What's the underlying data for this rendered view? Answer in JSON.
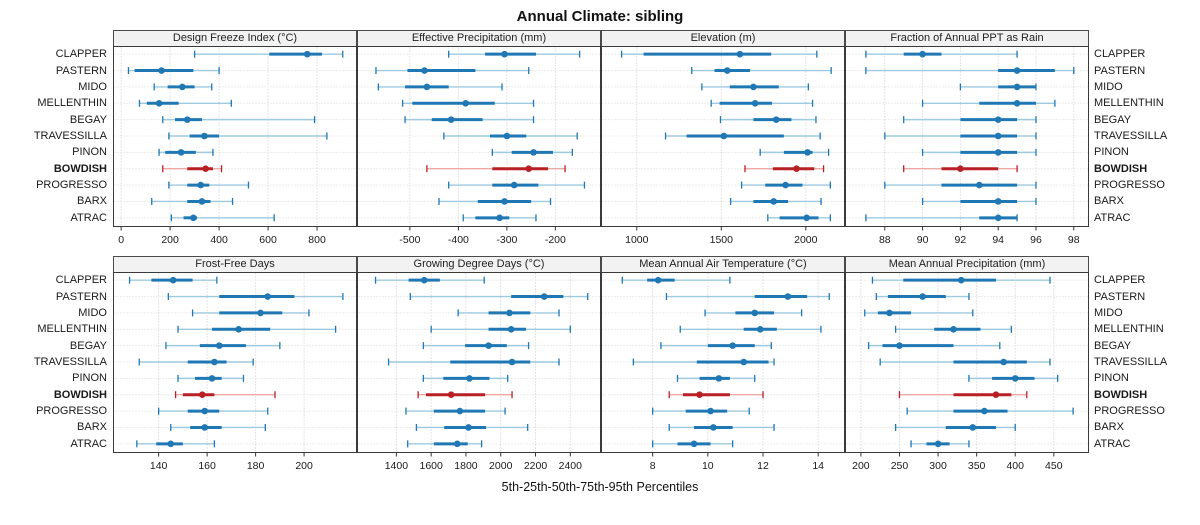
{
  "title": "Annual Climate: sibling",
  "footer": "5th-25th-50th-75th-95th Percentiles",
  "percentile_labels": [
    "5th",
    "25th",
    "50th",
    "75th",
    "95th"
  ],
  "stations": [
    "CLAPPER",
    "PASTERN",
    "MIDO",
    "MELLENTHIN",
    "BEGAY",
    "TRAVESSILLA",
    "PINON",
    "BOWDISH",
    "PROGRESSO",
    "BARX",
    "ATRAC"
  ],
  "highlight_station": "BOWDISH",
  "colors": {
    "blue": "#1f77b4",
    "blue_light": "#9ecae1",
    "red": "#b92025",
    "red_light": "#f0a8a4",
    "grid": "#c9c9c9",
    "panel_border": "#3a3a3a",
    "header_bg": "#f2f2f2",
    "tick_text": "#1a1a1a"
  },
  "chart_data": [
    {
      "type": "dot-interval",
      "title": "Design Freeze Index (°C)",
      "position": "top-1",
      "xlim": [
        -25,
        955
      ],
      "ticks": [
        0,
        200,
        400,
        600,
        800
      ],
      "series": [
        {
          "name": "CLAPPER",
          "values": [
            300,
            605,
            760,
            820,
            905
          ]
        },
        {
          "name": "PASTERN",
          "values": [
            30,
            55,
            165,
            295,
            400
          ]
        },
        {
          "name": "MIDO",
          "values": [
            135,
            190,
            250,
            300,
            370
          ]
        },
        {
          "name": "MELLENTHIN",
          "values": [
            75,
            105,
            155,
            235,
            450
          ]
        },
        {
          "name": "BEGAY",
          "values": [
            170,
            220,
            270,
            330,
            790
          ]
        },
        {
          "name": "TRAVESSILLA",
          "values": [
            195,
            280,
            340,
            400,
            840
          ]
        },
        {
          "name": "PINON",
          "values": [
            155,
            180,
            245,
            305,
            375
          ]
        },
        {
          "name": "BOWDISH",
          "values": [
            170,
            270,
            345,
            375,
            410
          ]
        },
        {
          "name": "PROGRESSO",
          "values": [
            195,
            270,
            325,
            360,
            520
          ]
        },
        {
          "name": "BARX",
          "values": [
            125,
            270,
            330,
            365,
            455
          ]
        },
        {
          "name": "ATRAC",
          "values": [
            205,
            255,
            295,
            310,
            625
          ]
        }
      ]
    },
    {
      "type": "dot-interval",
      "title": "Effective Precipitation (mm)",
      "position": "top-2",
      "xlim": [
        -605,
        -110
      ],
      "ticks": [
        -500,
        -400,
        -300,
        -200
      ],
      "series": [
        {
          "name": "CLAPPER",
          "values": [
            -420,
            -345,
            -305,
            -240,
            -150
          ]
        },
        {
          "name": "PASTERN",
          "values": [
            -570,
            -505,
            -470,
            -365,
            -255
          ]
        },
        {
          "name": "MIDO",
          "values": [
            -565,
            -510,
            -465,
            -420,
            -310
          ]
        },
        {
          "name": "MELLENTHIN",
          "values": [
            -515,
            -495,
            -385,
            -325,
            -245
          ]
        },
        {
          "name": "BEGAY",
          "values": [
            -510,
            -455,
            -415,
            -350,
            -245
          ]
        },
        {
          "name": "TRAVESSILLA",
          "values": [
            -430,
            -335,
            -300,
            -260,
            -155
          ]
        },
        {
          "name": "PINON",
          "values": [
            -330,
            -290,
            -245,
            -205,
            -165
          ]
        },
        {
          "name": "BOWDISH",
          "values": [
            -465,
            -330,
            -255,
            -215,
            -180
          ]
        },
        {
          "name": "PROGRESSO",
          "values": [
            -420,
            -330,
            -285,
            -235,
            -140
          ]
        },
        {
          "name": "BARX",
          "values": [
            -440,
            -360,
            -305,
            -250,
            -210
          ]
        },
        {
          "name": "ATRAC",
          "values": [
            -390,
            -365,
            -315,
            -295,
            -240
          ]
        }
      ]
    },
    {
      "type": "dot-interval",
      "title": "Elevation (m)",
      "position": "top-3",
      "xlim": [
        800,
        2220
      ],
      "ticks": [
        1000,
        1500,
        2000
      ],
      "series": [
        {
          "name": "CLAPPER",
          "values": [
            910,
            1040,
            1610,
            1795,
            2065
          ]
        },
        {
          "name": "PASTERN",
          "values": [
            1325,
            1460,
            1535,
            1670,
            2150
          ]
        },
        {
          "name": "MIDO",
          "values": [
            1385,
            1550,
            1690,
            1840,
            2015
          ]
        },
        {
          "name": "MELLENTHIN",
          "values": [
            1440,
            1490,
            1700,
            1800,
            2040
          ]
        },
        {
          "name": "BEGAY",
          "values": [
            1495,
            1690,
            1825,
            1915,
            2060
          ]
        },
        {
          "name": "TRAVESSILLA",
          "values": [
            1170,
            1295,
            1515,
            1870,
            2085
          ]
        },
        {
          "name": "PINON",
          "values": [
            1730,
            1870,
            2010,
            2040,
            2135
          ]
        },
        {
          "name": "BOWDISH",
          "values": [
            1640,
            1805,
            1945,
            2050,
            2105
          ]
        },
        {
          "name": "PROGRESSO",
          "values": [
            1620,
            1760,
            1880,
            1980,
            2145
          ]
        },
        {
          "name": "BARX",
          "values": [
            1555,
            1690,
            1810,
            1895,
            2090
          ]
        },
        {
          "name": "ATRAC",
          "values": [
            1775,
            1845,
            2005,
            2075,
            2145
          ]
        }
      ]
    },
    {
      "type": "dot-interval",
      "title": "Fraction of Annual PPT as Rain",
      "position": "top-4",
      "xlim": [
        86,
        98.7
      ],
      "ticks": [
        88,
        90,
        92,
        94,
        96,
        98
      ],
      "series": [
        {
          "name": "CLAPPER",
          "values": [
            87,
            89,
            90,
            91,
            95
          ]
        },
        {
          "name": "PASTERN",
          "values": [
            87,
            94,
            95,
            97,
            98
          ]
        },
        {
          "name": "MIDO",
          "values": [
            92,
            94,
            95,
            96,
            96
          ]
        },
        {
          "name": "MELLENTHIN",
          "values": [
            90,
            93,
            95,
            96,
            97
          ]
        },
        {
          "name": "BEGAY",
          "values": [
            89,
            92,
            94,
            95,
            96
          ]
        },
        {
          "name": "TRAVESSILLA",
          "values": [
            88,
            92,
            94,
            95,
            96
          ]
        },
        {
          "name": "PINON",
          "values": [
            90,
            92,
            94,
            95,
            96
          ]
        },
        {
          "name": "BOWDISH",
          "values": [
            89,
            91,
            92,
            94,
            95
          ]
        },
        {
          "name": "PROGRESSO",
          "values": [
            88,
            91,
            93,
            95,
            96
          ]
        },
        {
          "name": "BARX",
          "values": [
            90,
            92,
            94,
            95,
            96
          ]
        },
        {
          "name": "ATRAC",
          "values": [
            87,
            93,
            94,
            95,
            95
          ]
        }
      ]
    },
    {
      "type": "dot-interval",
      "title": "Frost-Free Days",
      "position": "bottom-1",
      "xlim": [
        122,
        221
      ],
      "ticks": [
        140,
        160,
        180,
        200
      ],
      "series": [
        {
          "name": "CLAPPER",
          "values": [
            128,
            137,
            146,
            154,
            164
          ]
        },
        {
          "name": "PASTERN",
          "values": [
            144,
            165,
            185,
            196,
            216
          ]
        },
        {
          "name": "MIDO",
          "values": [
            154,
            165,
            182,
            191,
            202
          ]
        },
        {
          "name": "MELLENTHIN",
          "values": [
            148,
            162,
            173,
            186,
            213
          ]
        },
        {
          "name": "BEGAY",
          "values": [
            143,
            157,
            165,
            176,
            190
          ]
        },
        {
          "name": "TRAVESSILLA",
          "values": [
            132,
            152,
            163,
            168,
            179
          ]
        },
        {
          "name": "PINON",
          "values": [
            148,
            155,
            162,
            166,
            175
          ]
        },
        {
          "name": "BOWDISH",
          "values": [
            147,
            150,
            158,
            163,
            188
          ]
        },
        {
          "name": "PROGRESSO",
          "values": [
            140,
            152,
            159,
            165,
            185
          ]
        },
        {
          "name": "BARX",
          "values": [
            145,
            153,
            159,
            166,
            184
          ]
        },
        {
          "name": "ATRAC",
          "values": [
            131,
            139,
            145,
            150,
            163
          ]
        }
      ]
    },
    {
      "type": "dot-interval",
      "title": "Growing Degree Days (°C)",
      "position": "bottom-2",
      "xlim": [
        1185,
        2565
      ],
      "ticks": [
        1400,
        1600,
        1800,
        2000,
        2200,
        2400
      ],
      "series": [
        {
          "name": "CLAPPER",
          "values": [
            1280,
            1470,
            1560,
            1650,
            1905
          ]
        },
        {
          "name": "PASTERN",
          "values": [
            1480,
            2060,
            2250,
            2360,
            2500
          ]
        },
        {
          "name": "MIDO",
          "values": [
            1755,
            1930,
            2050,
            2170,
            2335
          ]
        },
        {
          "name": "MELLENTHIN",
          "values": [
            1600,
            1930,
            2060,
            2145,
            2400
          ]
        },
        {
          "name": "BEGAY",
          "values": [
            1555,
            1795,
            1930,
            2035,
            2160
          ]
        },
        {
          "name": "TRAVESSILLA",
          "values": [
            1355,
            1710,
            2065,
            2170,
            2335
          ]
        },
        {
          "name": "PINON",
          "values": [
            1555,
            1670,
            1820,
            1935,
            2040
          ]
        },
        {
          "name": "BOWDISH",
          "values": [
            1525,
            1570,
            1715,
            1910,
            2065
          ]
        },
        {
          "name": "PROGRESSO",
          "values": [
            1455,
            1615,
            1765,
            1910,
            2025
          ]
        },
        {
          "name": "BARX",
          "values": [
            1515,
            1675,
            1815,
            1915,
            2155
          ]
        },
        {
          "name": "ATRAC",
          "values": [
            1465,
            1615,
            1750,
            1810,
            1890
          ]
        }
      ]
    },
    {
      "type": "dot-interval",
      "title": "Mean Annual Air Temperature (°C)",
      "position": "bottom-3",
      "xlim": [
        6.2,
        14.9
      ],
      "ticks": [
        8,
        10,
        12,
        14
      ],
      "series": [
        {
          "name": "CLAPPER",
          "values": [
            6.9,
            7.8,
            8.2,
            8.8,
            10.8
          ]
        },
        {
          "name": "PASTERN",
          "values": [
            8.5,
            11.7,
            12.9,
            13.6,
            14.4
          ]
        },
        {
          "name": "MIDO",
          "values": [
            9.9,
            11.0,
            11.7,
            12.4,
            13.4
          ]
        },
        {
          "name": "MELLENTHIN",
          "values": [
            9.0,
            11.3,
            11.9,
            12.5,
            14.1
          ]
        },
        {
          "name": "BEGAY",
          "values": [
            8.3,
            10.0,
            10.9,
            11.7,
            12.3
          ]
        },
        {
          "name": "TRAVESSILLA",
          "values": [
            7.3,
            9.6,
            11.3,
            12.2,
            12.4
          ]
        },
        {
          "name": "PINON",
          "values": [
            8.9,
            9.7,
            10.4,
            10.8,
            11.7
          ]
        },
        {
          "name": "BOWDISH",
          "values": [
            8.6,
            9.1,
            9.7,
            10.8,
            12.0
          ]
        },
        {
          "name": "PROGRESSO",
          "values": [
            8.0,
            9.2,
            10.1,
            10.7,
            11.5
          ]
        },
        {
          "name": "BARX",
          "values": [
            8.6,
            9.5,
            10.2,
            10.9,
            12.4
          ]
        },
        {
          "name": "ATRAC",
          "values": [
            8.0,
            8.9,
            9.5,
            10.1,
            10.9
          ]
        }
      ]
    },
    {
      "type": "dot-interval",
      "title": "Mean Annual Precipitation (mm)",
      "position": "bottom-4",
      "xlim": [
        182,
        493
      ],
      "ticks": [
        200,
        250,
        300,
        350,
        400,
        450
      ],
      "series": [
        {
          "name": "CLAPPER",
          "values": [
            215,
            255,
            330,
            375,
            445
          ]
        },
        {
          "name": "PASTERN",
          "values": [
            220,
            235,
            280,
            310,
            340
          ]
        },
        {
          "name": "MIDO",
          "values": [
            205,
            222,
            237,
            265,
            345
          ]
        },
        {
          "name": "MELLENTHIN",
          "values": [
            245,
            295,
            320,
            355,
            395
          ]
        },
        {
          "name": "BEGAY",
          "values": [
            210,
            228,
            250,
            320,
            380
          ]
        },
        {
          "name": "TRAVESSILLA",
          "values": [
            225,
            320,
            385,
            415,
            445
          ]
        },
        {
          "name": "PINON",
          "values": [
            340,
            370,
            400,
            425,
            455
          ]
        },
        {
          "name": "BOWDISH",
          "values": [
            250,
            320,
            375,
            395,
            415
          ]
        },
        {
          "name": "PROGRESSO",
          "values": [
            260,
            320,
            360,
            390,
            475
          ]
        },
        {
          "name": "BARX",
          "values": [
            245,
            310,
            345,
            375,
            400
          ]
        },
        {
          "name": "ATRAC",
          "values": [
            265,
            285,
            300,
            315,
            340
          ]
        }
      ]
    }
  ]
}
